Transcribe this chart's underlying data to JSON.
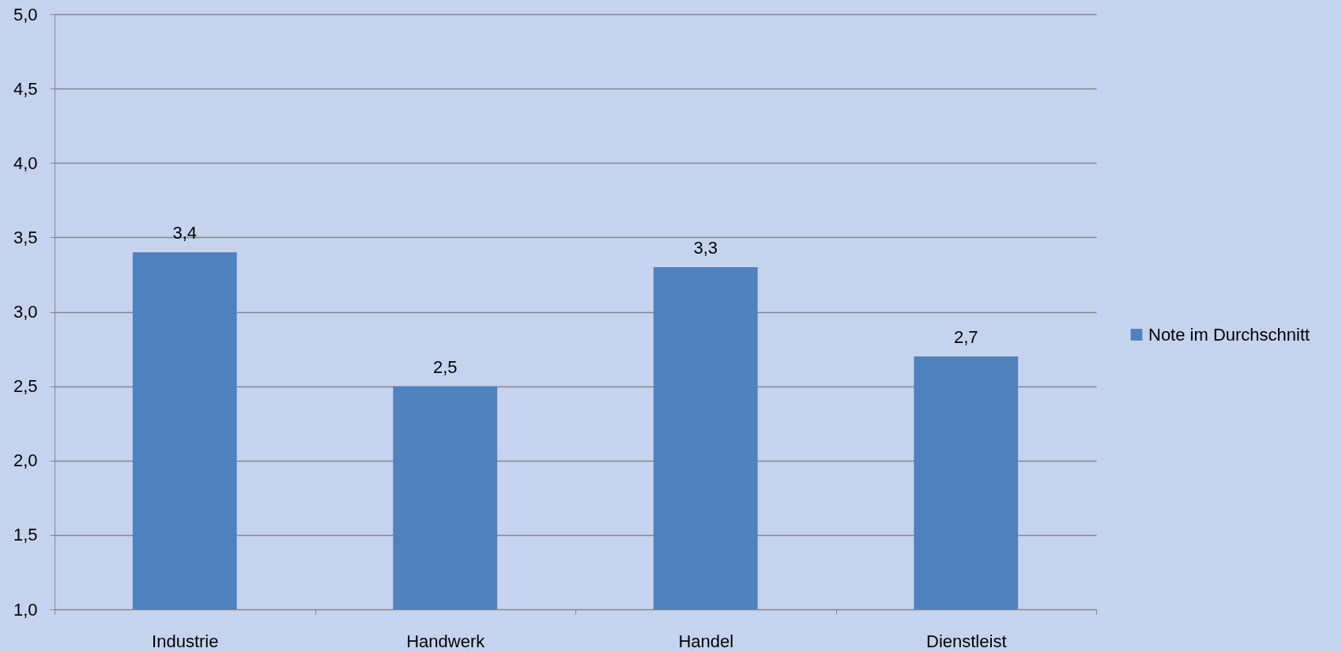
{
  "chart_data": {
    "type": "bar",
    "categories": [
      "Industrie",
      "Handwerk",
      "Handel",
      "Dienstleist"
    ],
    "series": [
      {
        "name": "Note im Durchschnitt",
        "color": "#4f81bd",
        "values": [
          3.4,
          2.5,
          3.3,
          2.7
        ],
        "value_labels": [
          "3,4",
          "2,5",
          "3,3",
          "2,7"
        ]
      }
    ],
    "ylim": [
      1,
      5
    ],
    "yticks": [
      {
        "value": 1,
        "label": "1,0"
      },
      {
        "value": 1.5,
        "label": "1,5"
      },
      {
        "value": 2,
        "label": "2,0"
      },
      {
        "value": 2.5,
        "label": "2,5"
      },
      {
        "value": 3,
        "label": "3,0"
      },
      {
        "value": 3.5,
        "label": "3,5"
      },
      {
        "value": 4,
        "label": "4,0"
      },
      {
        "value": 4.5,
        "label": "4,5"
      },
      {
        "value": 5,
        "label": "5,0"
      }
    ],
    "grid": "y",
    "legend": "right"
  }
}
